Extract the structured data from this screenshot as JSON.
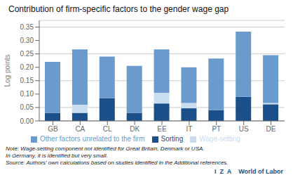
{
  "chart_data": {
    "type": "bar",
    "stacked": true,
    "title": "Contribution of firm-specific factors to the gender wage gap",
    "ylabel": "Log points",
    "categories": [
      "GB",
      "CA",
      "CL",
      "DK",
      "EE",
      "IT",
      "PT",
      "US",
      "DE"
    ],
    "series": [
      {
        "name": "Sorting",
        "color": "#1a4f8a",
        "values": [
          0.03,
          0.03,
          0.085,
          0.03,
          0.065,
          0.047,
          0.04,
          0.09,
          0.062
        ]
      },
      {
        "name": "Wage-setting",
        "color": "#c8ddf0",
        "values": [
          0.0,
          0.03,
          0.0,
          0.0,
          0.04,
          0.02,
          0.0,
          0.0,
          0.005
        ]
      },
      {
        "name": "Other factors unrelated to the firm",
        "color": "#6a9bcc",
        "values": [
          0.19,
          0.207,
          0.155,
          0.175,
          0.162,
          0.133,
          0.193,
          0.243,
          0.178
        ]
      }
    ],
    "ylim": [
      0,
      0.375
    ],
    "yticks": [
      {
        "value": 0.0,
        "label": "0.00"
      },
      {
        "value": 0.05,
        "label": "0.05"
      },
      {
        "value": 0.1,
        "label": "0.10"
      },
      {
        "value": 0.15,
        "label": "0.15"
      },
      {
        "value": 0.2,
        "label": "0.20"
      },
      {
        "value": 0.25,
        "label": "0.25"
      },
      {
        "value": 0.3,
        "label": "0.30"
      },
      {
        "value": 0.35,
        "label": "0.35"
      }
    ],
    "grid": true,
    "legend": "bottom",
    "annotations": [
      "Note: Wage-setting component not identified for Great Britain, Denmark or USA.",
      "In Germany, it is identified but very small.",
      "Source: Authors' own calculations based on studies identified in the Additional references.",
      "I  Z  A",
      "World of Labor"
    ]
  }
}
